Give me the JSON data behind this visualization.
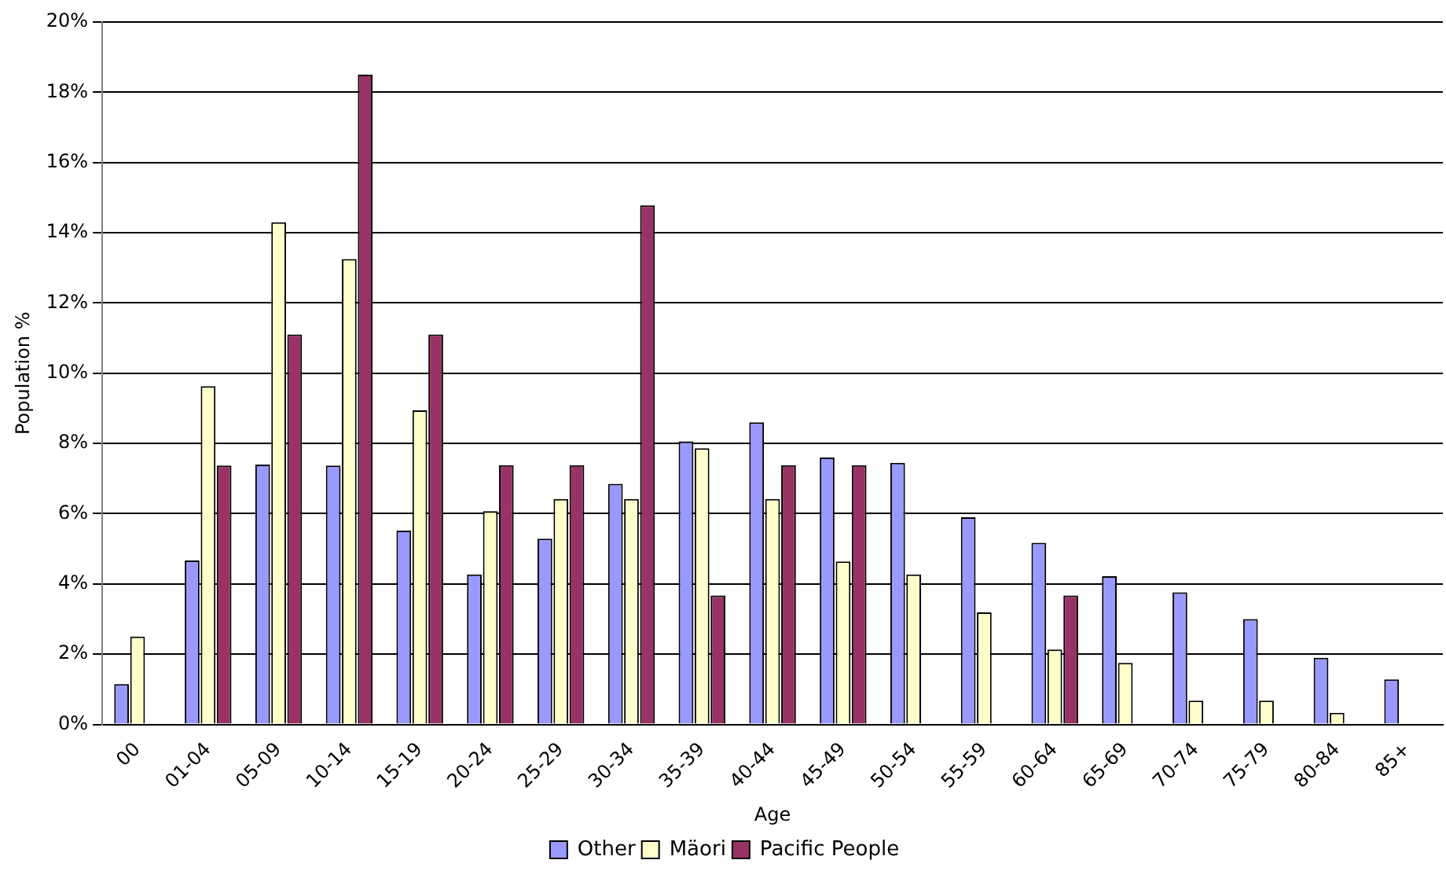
{
  "chart_data": {
    "type": "bar",
    "xlabel": "Age",
    "ylabel": "Population %",
    "categories": [
      "00",
      "01-04",
      "05-09",
      "10-14",
      "15-19",
      "20-24",
      "25-29",
      "30-34",
      "35-39",
      "40-44",
      "45-49",
      "50-54",
      "55-59",
      "60-64",
      "65-69",
      "70-74",
      "75-79",
      "80-84",
      "85+"
    ],
    "series": [
      {
        "name": "Other",
        "color": "#9999ff",
        "values": [
          1.15,
          4.67,
          7.4,
          7.37,
          5.52,
          4.27,
          5.29,
          6.85,
          8.06,
          8.6,
          7.6,
          7.45,
          5.9,
          5.17,
          4.22,
          3.76,
          3.0,
          1.9,
          1.28
        ]
      },
      {
        "name": "Mäori",
        "color": "#ffffcc",
        "values": [
          2.5,
          9.63,
          14.3,
          13.25,
          8.94,
          6.07,
          6.42,
          6.42,
          7.86,
          6.42,
          4.64,
          4.27,
          3.19,
          2.13,
          1.75,
          0.68,
          0.68,
          0.33,
          null
        ]
      },
      {
        "name": "Pacific People",
        "color": "#993366",
        "values": [
          null,
          7.37,
          11.1,
          18.5,
          11.1,
          7.38,
          7.38,
          14.78,
          3.67,
          7.38,
          7.38,
          null,
          null,
          3.67,
          null,
          null,
          null,
          null,
          null
        ]
      }
    ],
    "ylim": [
      0,
      20
    ],
    "yticks": [
      {
        "value": 0,
        "label": "0%"
      },
      {
        "value": 2,
        "label": "2%"
      },
      {
        "value": 4,
        "label": "4%"
      },
      {
        "value": 6,
        "label": "6%"
      },
      {
        "value": 8,
        "label": "8%"
      },
      {
        "value": 10,
        "label": "10%"
      },
      {
        "value": 12,
        "label": "12%"
      },
      {
        "value": 14,
        "label": "14%"
      },
      {
        "value": 16,
        "label": "16%"
      },
      {
        "value": 18,
        "label": "18%"
      },
      {
        "value": 20,
        "label": "20%"
      }
    ],
    "grid": "y",
    "legend": "bottom"
  }
}
